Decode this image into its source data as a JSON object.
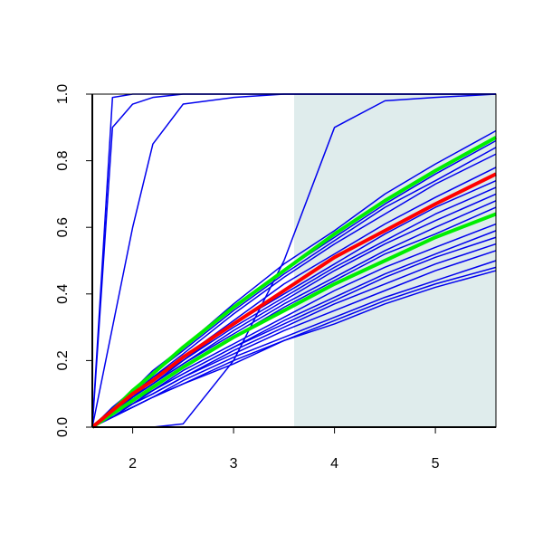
{
  "chart_data": {
    "type": "line",
    "x": [
      1.6,
      1.8,
      2,
      2.2,
      2.5,
      3,
      3.5,
      4,
      4.5,
      5,
      5.6
    ],
    "xlim": [
      1.6,
      5.6
    ],
    "xticks": [
      2,
      3,
      4,
      5
    ],
    "ylim": [
      0,
      1
    ],
    "yticks": [
      {
        "value": 0,
        "label": "0.0"
      },
      0.2,
      0.4,
      0.6,
      0.8,
      {
        "value": 1,
        "label": "1.0"
      }
    ],
    "shaded_region": {
      "xlim": [
        3.6,
        5.6
      ],
      "color": "#dfecec"
    },
    "series": [
      {
        "color": "#0000ee",
        "line_width": 1.5,
        "values": [
          0,
          0.99,
          1,
          1,
          1,
          1,
          1,
          1,
          1,
          1,
          1
        ]
      },
      {
        "color": "#0000ee",
        "line_width": 1.5,
        "values": [
          0,
          0.9,
          0.97,
          0.99,
          1,
          1,
          1,
          1,
          1,
          1,
          1
        ]
      },
      {
        "color": "#0000ee",
        "line_width": 1.5,
        "values": [
          0,
          0.3,
          0.6,
          0.85,
          0.97,
          0.99,
          1,
          1,
          1,
          1,
          1
        ]
      },
      {
        "color": "#0000ee",
        "line_width": 1.5,
        "values": [
          0,
          0,
          0,
          0,
          0.01,
          0.2,
          0.5,
          0.9,
          0.98,
          0.99,
          1
        ]
      },
      {
        "color": "#0000ee",
        "line_width": 1.5,
        "values": [
          0,
          0.06,
          0.11,
          0.17,
          0.24,
          0.37,
          0.49,
          0.59,
          0.7,
          0.79,
          0.89
        ]
      },
      {
        "color": "#0000ee",
        "line_width": 1.5,
        "values": [
          0,
          0.05,
          0.11,
          0.16,
          0.24,
          0.36,
          0.47,
          0.57,
          0.67,
          0.76,
          0.86
        ]
      },
      {
        "color": "#0000ee",
        "line_width": 1.5,
        "values": [
          0,
          0.05,
          0.11,
          0.16,
          0.23,
          0.35,
          0.46,
          0.56,
          0.66,
          0.74,
          0.84
        ]
      },
      {
        "color": "#0000ee",
        "line_width": 1.5,
        "values": [
          0,
          0.05,
          0.1,
          0.15,
          0.22,
          0.34,
          0.45,
          0.55,
          0.64,
          0.73,
          0.82
        ]
      },
      {
        "color": "#0000ee",
        "line_width": 1.5,
        "values": [
          0,
          0.05,
          0.1,
          0.15,
          0.21,
          0.32,
          0.43,
          0.52,
          0.61,
          0.69,
          0.78
        ]
      },
      {
        "color": "#0000ee",
        "line_width": 1.5,
        "values": [
          0,
          0.05,
          0.09,
          0.14,
          0.2,
          0.31,
          0.4,
          0.49,
          0.58,
          0.66,
          0.74
        ]
      },
      {
        "color": "#0000ee",
        "line_width": 1.5,
        "values": [
          0,
          0.05,
          0.09,
          0.13,
          0.2,
          0.3,
          0.39,
          0.48,
          0.56,
          0.64,
          0.72
        ]
      },
      {
        "color": "#0000ee",
        "line_width": 1.5,
        "values": [
          0,
          0.04,
          0.09,
          0.13,
          0.19,
          0.29,
          0.38,
          0.47,
          0.55,
          0.62,
          0.7
        ]
      },
      {
        "color": "#0000ee",
        "line_width": 1.5,
        "values": [
          0,
          0.04,
          0.09,
          0.13,
          0.19,
          0.28,
          0.37,
          0.45,
          0.53,
          0.6,
          0.68
        ]
      },
      {
        "color": "#0000ee",
        "line_width": 1.5,
        "values": [
          0,
          0.04,
          0.08,
          0.12,
          0.18,
          0.27,
          0.36,
          0.44,
          0.52,
          0.58,
          0.66
        ]
      },
      {
        "color": "#0000ee",
        "line_width": 1.5,
        "values": [
          0,
          0.04,
          0.08,
          0.11,
          0.17,
          0.25,
          0.33,
          0.41,
          0.48,
          0.54,
          0.61
        ]
      },
      {
        "color": "#0000ee",
        "line_width": 1.5,
        "values": [
          0,
          0.04,
          0.07,
          0.11,
          0.16,
          0.24,
          0.32,
          0.39,
          0.46,
          0.52,
          0.59
        ]
      },
      {
        "color": "#0000ee",
        "line_width": 1.5,
        "values": [
          0,
          0.04,
          0.07,
          0.11,
          0.16,
          0.24,
          0.31,
          0.38,
          0.45,
          0.51,
          0.57
        ]
      },
      {
        "color": "#0000ee",
        "line_width": 1.5,
        "values": [
          0,
          0.03,
          0.07,
          0.1,
          0.15,
          0.23,
          0.3,
          0.37,
          0.43,
          0.49,
          0.55
        ]
      },
      {
        "color": "#0000ee",
        "line_width": 1.5,
        "values": [
          0,
          0.03,
          0.07,
          0.1,
          0.15,
          0.22,
          0.29,
          0.35,
          0.41,
          0.47,
          0.53
        ]
      },
      {
        "color": "#0000ee",
        "line_width": 1.5,
        "values": [
          0,
          0.03,
          0.06,
          0.09,
          0.14,
          0.21,
          0.27,
          0.33,
          0.39,
          0.44,
          0.5
        ]
      },
      {
        "color": "#0000ee",
        "line_width": 1.5,
        "values": [
          0,
          0.03,
          0.06,
          0.09,
          0.13,
          0.2,
          0.26,
          0.32,
          0.38,
          0.43,
          0.48
        ]
      },
      {
        "color": "#0000ee",
        "line_width": 1.5,
        "values": [
          0,
          0.03,
          0.06,
          0.09,
          0.13,
          0.19,
          0.26,
          0.31,
          0.37,
          0.42,
          0.47
        ]
      },
      {
        "color": "#00ee00",
        "line_width": 4,
        "values": [
          0,
          0.05,
          0.11,
          0.16,
          0.24,
          0.36,
          0.47,
          0.58,
          0.68,
          0.77,
          0.87
        ]
      },
      {
        "color": "#00ee00",
        "line_width": 4,
        "values": [
          0,
          0.04,
          0.08,
          0.12,
          0.18,
          0.27,
          0.35,
          0.43,
          0.5,
          0.57,
          0.64
        ]
      },
      {
        "color": "#ff0000",
        "line_width": 4,
        "values": [
          0,
          0.05,
          0.1,
          0.14,
          0.21,
          0.31,
          0.41,
          0.51,
          0.59,
          0.67,
          0.76
        ]
      }
    ]
  }
}
